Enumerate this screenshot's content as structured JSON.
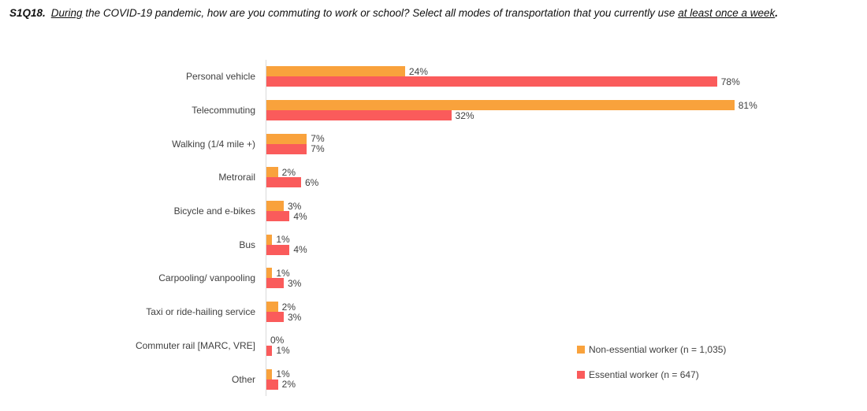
{
  "title": {
    "q": "S1Q18.",
    "seg_underline1": "During",
    "seg_middle": " the COVID-19 pandemic, how are you commuting to work or school? Select all modes of transportation that you currently use ",
    "seg_underline2": "at least once a week",
    "seg_end": "."
  },
  "chart_data": {
    "type": "bar",
    "orientation": "horizontal",
    "title": "",
    "xlabel": "",
    "ylabel": "",
    "xlim": [
      0,
      100
    ],
    "grid": false,
    "value_suffix": "%",
    "legend_position": "inside-bottom-right",
    "categories": [
      "Personal vehicle",
      "Telecommuting",
      "Walking (1/4 mile +)",
      "Metrorail",
      "Bicycle and e-bikes",
      "Bus",
      "Carpooling/ vanpooling",
      "Taxi or ride-hailing service",
      "Commuter rail [MARC, VRE]",
      "Other"
    ],
    "series": [
      {
        "name": "Non-essential worker (n = 1,035)",
        "key": "non-essential",
        "color": "#F9A23C",
        "values": [
          24,
          81,
          7,
          2,
          3,
          1,
          1,
          2,
          0,
          1
        ],
        "labels": [
          "24%",
          "81%",
          "7%",
          "2%",
          "3%",
          "1%",
          "1%",
          "2%",
          "0%",
          "1%"
        ]
      },
      {
        "name": "Essential worker (n = 647)",
        "key": "essential",
        "color": "#FA5B5B",
        "values": [
          78,
          32,
          7,
          6,
          4,
          4,
          3,
          3,
          1,
          2
        ],
        "labels": [
          "78%",
          "32%",
          "7%",
          "6%",
          "4%",
          "4%",
          "3%",
          "3%",
          "1%",
          "2%"
        ]
      }
    ]
  },
  "legend": {
    "items": [
      {
        "label": "Non-essential worker (n = 1,035)",
        "color": "#F9A23C"
      },
      {
        "label": "Essential worker (n = 647)",
        "color": "#FA5B5B"
      }
    ]
  },
  "colors": {
    "non_essential": "#F9A23C",
    "essential": "#FA5B5B",
    "axis_line": "#D9D9D9",
    "label_text": "#404040"
  }
}
